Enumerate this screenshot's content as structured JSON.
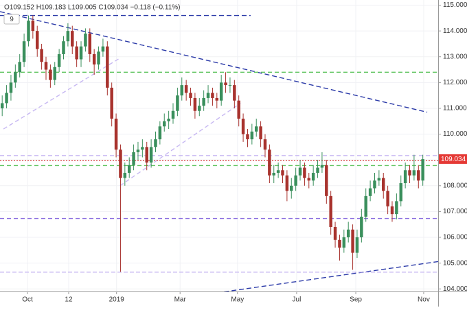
{
  "chart_data": {
    "type": "candlestick",
    "legend_text": "O109.152 H109.183 L109.005 C109.034 −0.118 (−0.11%)",
    "interval_badge": "9",
    "last_price": 109.034,
    "up_color": "#3a8f5c",
    "down_color": "#a8322d",
    "grid": true,
    "xlim": [
      0,
      100
    ],
    "ylim": [
      103.9,
      115.2
    ],
    "yticks": [
      {
        "value": 104,
        "label": "104.000"
      },
      {
        "value": 105,
        "label": "105.000"
      },
      {
        "value": 106,
        "label": "106.000"
      },
      {
        "value": 107,
        "label": "107.000"
      },
      {
        "value": 108,
        "label": "108.000"
      },
      {
        "value": 109,
        "label": "109.000"
      },
      {
        "value": 110,
        "label": "110.000"
      },
      {
        "value": 111,
        "label": "111.000"
      },
      {
        "value": 112,
        "label": "112.000"
      },
      {
        "value": 113,
        "label": "113.000"
      },
      {
        "value": 114,
        "label": "114.000"
      },
      {
        "value": 115,
        "label": "115.000"
      }
    ],
    "xticks": [
      {
        "value": 6.27,
        "label": "Oct"
      },
      {
        "value": 15.67,
        "label": "12"
      },
      {
        "value": 26.6,
        "label": "2019"
      },
      {
        "value": 41.1,
        "label": "Mar"
      },
      {
        "value": 54.2,
        "label": "May"
      },
      {
        "value": 67.7,
        "label": "Jul"
      },
      {
        "value": 81.2,
        "label": "Sep"
      },
      {
        "value": 96.7,
        "label": "Nov"
      }
    ],
    "x": [
      0.5,
      1.5,
      2.5,
      3.5,
      4.5,
      5.5,
      6.5,
      7.5,
      8.5,
      9.5,
      10.5,
      11.5,
      12.5,
      13.5,
      14.5,
      15.5,
      16.5,
      17.5,
      18.5,
      19.5,
      20.5,
      21.5,
      22.5,
      23.5,
      24.5,
      25.5,
      26.5,
      27.5,
      28.5,
      29.5,
      30.5,
      31.5,
      32.5,
      33.5,
      34.5,
      35.5,
      36.5,
      37.5,
      38.5,
      39.5,
      40.5,
      41.5,
      42.5,
      43.5,
      44.5,
      45.5,
      46.5,
      47.5,
      48.5,
      49.5,
      50.5,
      51.5,
      52.5,
      53.5,
      54.5,
      55.5,
      56.5,
      57.5,
      58.5,
      59.5,
      60.5,
      61.5,
      62.5,
      63.5,
      64.5,
      65.5,
      66.5,
      67.5,
      68.5,
      69.5,
      70.5,
      71.5,
      72.5,
      73.5,
      74.5,
      75.5,
      76.5,
      77.5,
      78.5,
      79.5,
      80.5,
      81.5,
      82.5,
      83.5,
      84.5,
      85.5,
      86.5,
      87.5,
      88.5,
      89.5,
      90.5,
      91.5,
      92.5,
      93.5,
      94.5,
      95.5,
      96.5
    ],
    "open": [
      111.0,
      111.2,
      111.6,
      112.0,
      112.4,
      112.8,
      113.6,
      114.4,
      114.0,
      113.3,
      112.8,
      112.5,
      112.1,
      112.6,
      113.1,
      113.6,
      114.0,
      113.4,
      112.9,
      113.4,
      113.9,
      113.1,
      112.7,
      113.2,
      113.4,
      111.8,
      110.6,
      109.4,
      108.3,
      108.5,
      108.8,
      109.3,
      109.4,
      109.5,
      108.9,
      109.5,
      109.8,
      110.3,
      110.5,
      110.6,
      110.9,
      111.5,
      111.9,
      111.6,
      111.4,
      110.9,
      111.1,
      111.4,
      111.6,
      111.4,
      111.3,
      112.0,
      111.9,
      111.9,
      111.3,
      110.6,
      110.0,
      109.8,
      110.1,
      110.3,
      109.8,
      109.4,
      108.4,
      108.5,
      108.6,
      108.4,
      107.8,
      108.0,
      108.4,
      108.7,
      108.3,
      108.2,
      108.5,
      108.7,
      108.8,
      107.6,
      106.4,
      105.9,
      105.6,
      106.0,
      106.3,
      105.4,
      106.0,
      106.8,
      107.6,
      107.9,
      108.2,
      108.3,
      107.8,
      107.2,
      106.9,
      107.4,
      108.1,
      108.6,
      108.4,
      108.6,
      108.2
    ],
    "high": [
      111.5,
      111.9,
      112.3,
      112.7,
      113.1,
      113.9,
      114.6,
      114.6,
      114.2,
      113.5,
      113.0,
      112.7,
      112.8,
      113.3,
      113.8,
      114.3,
      114.2,
      113.6,
      113.6,
      114.1,
      114.1,
      113.3,
      113.4,
      113.7,
      113.6,
      112.0,
      110.8,
      109.6,
      108.9,
      109.1,
      109.6,
      109.7,
      109.8,
      109.7,
      109.8,
      110.1,
      110.5,
      110.8,
      110.9,
      111.2,
      111.8,
      112.2,
      112.1,
      111.8,
      111.6,
      111.4,
      111.7,
      111.9,
      111.8,
      111.6,
      112.3,
      112.4,
      112.2,
      112.1,
      111.5,
      110.8,
      110.2,
      110.4,
      110.6,
      110.5,
      110.0,
      109.6,
      108.8,
      108.9,
      108.8,
      108.6,
      108.3,
      108.7,
      109.0,
      108.9,
      108.5,
      108.8,
      109.0,
      109.3,
      109.0,
      107.8,
      106.6,
      106.1,
      106.3,
      106.6,
      106.5,
      106.3,
      107.1,
      107.9,
      108.2,
      108.5,
      108.6,
      108.5,
      108.0,
      107.4,
      107.7,
      108.4,
      108.9,
      108.8,
      109.2,
      108.8,
      109.2
    ],
    "low": [
      110.7,
      111.0,
      111.3,
      111.8,
      112.2,
      112.6,
      113.4,
      113.7,
      113.0,
      112.5,
      112.1,
      111.8,
      111.9,
      112.4,
      112.9,
      113.4,
      113.1,
      112.6,
      112.6,
      113.2,
      112.8,
      112.3,
      112.5,
      113.0,
      111.5,
      110.3,
      109.1,
      104.66,
      108.0,
      108.3,
      108.6,
      109.0,
      109.1,
      108.6,
      108.7,
      109.3,
      109.6,
      110.1,
      110.2,
      110.4,
      110.7,
      111.3,
      111.3,
      111.1,
      110.6,
      110.7,
      110.9,
      111.2,
      111.1,
      111.0,
      111.1,
      111.6,
      111.6,
      111.0,
      110.3,
      109.7,
      109.5,
      109.6,
      109.9,
      109.5,
      109.1,
      108.1,
      108.1,
      108.3,
      108.1,
      107.4,
      107.5,
      107.8,
      108.2,
      108.0,
      107.9,
      108.0,
      108.3,
      108.5,
      107.3,
      106.1,
      105.6,
      105.1,
      105.4,
      105.8,
      104.74,
      105.2,
      105.8,
      106.6,
      107.4,
      107.7,
      108.0,
      107.5,
      106.9,
      106.6,
      106.7,
      107.2,
      107.9,
      108.1,
      108.2,
      107.9,
      108.0
    ],
    "close": [
      111.2,
      111.6,
      112.0,
      112.4,
      112.8,
      113.6,
      114.4,
      114.0,
      113.3,
      112.8,
      112.5,
      112.1,
      112.6,
      113.1,
      113.6,
      114.0,
      113.4,
      112.9,
      113.4,
      113.9,
      113.1,
      112.7,
      113.2,
      113.4,
      111.8,
      110.6,
      109.4,
      108.3,
      108.5,
      108.8,
      109.3,
      109.4,
      109.5,
      108.9,
      109.5,
      109.8,
      110.3,
      110.5,
      110.6,
      110.9,
      111.5,
      111.9,
      111.6,
      111.4,
      110.9,
      111.1,
      111.4,
      111.6,
      111.4,
      111.3,
      112.0,
      111.9,
      111.9,
      111.3,
      110.6,
      110.0,
      109.8,
      110.1,
      110.3,
      109.8,
      109.4,
      108.4,
      108.5,
      108.6,
      108.4,
      107.8,
      108.0,
      108.4,
      108.7,
      108.3,
      108.2,
      108.5,
      108.7,
      108.8,
      107.6,
      106.4,
      105.9,
      105.6,
      106.0,
      106.3,
      105.4,
      106.0,
      106.8,
      107.6,
      107.9,
      108.2,
      108.3,
      107.8,
      107.2,
      106.9,
      107.4,
      108.1,
      108.6,
      108.4,
      108.6,
      108.2,
      109.03
    ],
    "annotation_lines": [
      {
        "x": [
          0,
          57.2
        ],
        "y": [
          114.6,
          114.6
        ],
        "color": "#2b3aa8",
        "dash": "7 4"
      },
      {
        "x": [
          0,
          97.5
        ],
        "y": [
          114.75,
          110.85
        ],
        "color": "#2b3aa8",
        "dash": "7 4"
      },
      {
        "x": [
          39.2,
          100
        ],
        "y": [
          103.6,
          105.06
        ],
        "color": "#2b3aa8",
        "dash": "7 4"
      },
      {
        "x": [
          0,
          100
        ],
        "y": [
          112.4,
          112.4
        ],
        "color": "#5ec45e",
        "dash": "6 4"
      },
      {
        "x": [
          0,
          100
        ],
        "y": [
          108.78,
          108.78
        ],
        "color": "#5ec45e",
        "dash": "6 4"
      },
      {
        "x": [
          0,
          100
        ],
        "y": [
          106.73,
          106.73
        ],
        "color": "#8b6fe0",
        "dash": "6 4"
      },
      {
        "x": [
          0,
          100
        ],
        "y": [
          109.17,
          109.17
        ],
        "color": "#c7b8f2",
        "dash": "6 4"
      },
      {
        "x": [
          0,
          100
        ],
        "y": [
          104.65,
          104.65
        ],
        "color": "#c7b8f2",
        "dash": "6 3"
      },
      {
        "x": [
          0.8,
          27.4
        ],
        "y": [
          110.2,
          112.95
        ],
        "color": "#c7b8f2",
        "dash": "6 4"
      },
      {
        "x": [
          27.4,
          54.9
        ],
        "y": [
          108.0,
          111.2
        ],
        "color": "#c7b8f2",
        "dash": "6 4"
      },
      {
        "x": [
          0,
          100
        ],
        "y": [
          108.97,
          108.97
        ],
        "color": "#e05050",
        "dash": "2 2"
      }
    ]
  }
}
